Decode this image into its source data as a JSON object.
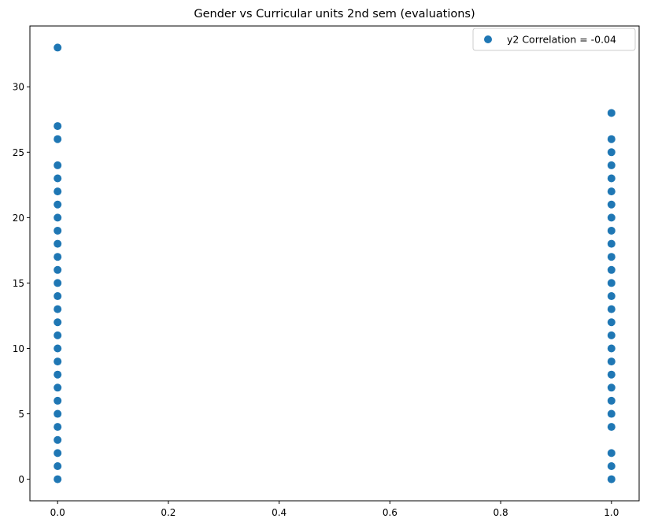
{
  "chart_data": {
    "type": "scatter",
    "title": "Gender vs Curricular units 2nd sem (evaluations)",
    "xlabel": "",
    "ylabel": "",
    "xlim": [
      -0.05,
      1.05
    ],
    "ylim": [
      -1.65,
      34.65
    ],
    "x_ticks": [
      0.0,
      0.2,
      0.4,
      0.6,
      0.8,
      1.0
    ],
    "x_tick_labels": [
      "0.0",
      "0.2",
      "0.4",
      "0.6",
      "0.8",
      "1.0"
    ],
    "y_ticks": [
      0,
      5,
      10,
      15,
      20,
      25,
      30
    ],
    "y_tick_labels": [
      "0",
      "5",
      "10",
      "15",
      "20",
      "25",
      "30"
    ],
    "grid": false,
    "legend_position": "top-right",
    "marker_color": "#1f77b4",
    "series": [
      {
        "name": "y2 Correlation = -0.04",
        "points": [
          {
            "x": 0,
            "y": 0
          },
          {
            "x": 0,
            "y": 1
          },
          {
            "x": 0,
            "y": 2
          },
          {
            "x": 0,
            "y": 3
          },
          {
            "x": 0,
            "y": 4
          },
          {
            "x": 0,
            "y": 5
          },
          {
            "x": 0,
            "y": 6
          },
          {
            "x": 0,
            "y": 7
          },
          {
            "x": 0,
            "y": 8
          },
          {
            "x": 0,
            "y": 9
          },
          {
            "x": 0,
            "y": 10
          },
          {
            "x": 0,
            "y": 11
          },
          {
            "x": 0,
            "y": 12
          },
          {
            "x": 0,
            "y": 13
          },
          {
            "x": 0,
            "y": 14
          },
          {
            "x": 0,
            "y": 15
          },
          {
            "x": 0,
            "y": 16
          },
          {
            "x": 0,
            "y": 17
          },
          {
            "x": 0,
            "y": 18
          },
          {
            "x": 0,
            "y": 19
          },
          {
            "x": 0,
            "y": 20
          },
          {
            "x": 0,
            "y": 21
          },
          {
            "x": 0,
            "y": 22
          },
          {
            "x": 0,
            "y": 23
          },
          {
            "x": 0,
            "y": 24
          },
          {
            "x": 0,
            "y": 26
          },
          {
            "x": 0,
            "y": 27
          },
          {
            "x": 0,
            "y": 33
          },
          {
            "x": 1,
            "y": 0
          },
          {
            "x": 1,
            "y": 1
          },
          {
            "x": 1,
            "y": 2
          },
          {
            "x": 1,
            "y": 4
          },
          {
            "x": 1,
            "y": 5
          },
          {
            "x": 1,
            "y": 6
          },
          {
            "x": 1,
            "y": 7
          },
          {
            "x": 1,
            "y": 8
          },
          {
            "x": 1,
            "y": 9
          },
          {
            "x": 1,
            "y": 10
          },
          {
            "x": 1,
            "y": 11
          },
          {
            "x": 1,
            "y": 12
          },
          {
            "x": 1,
            "y": 13
          },
          {
            "x": 1,
            "y": 14
          },
          {
            "x": 1,
            "y": 15
          },
          {
            "x": 1,
            "y": 16
          },
          {
            "x": 1,
            "y": 17
          },
          {
            "x": 1,
            "y": 18
          },
          {
            "x": 1,
            "y": 19
          },
          {
            "x": 1,
            "y": 20
          },
          {
            "x": 1,
            "y": 21
          },
          {
            "x": 1,
            "y": 22
          },
          {
            "x": 1,
            "y": 23
          },
          {
            "x": 1,
            "y": 24
          },
          {
            "x": 1,
            "y": 25
          },
          {
            "x": 1,
            "y": 26
          },
          {
            "x": 1,
            "y": 28
          }
        ]
      }
    ]
  }
}
